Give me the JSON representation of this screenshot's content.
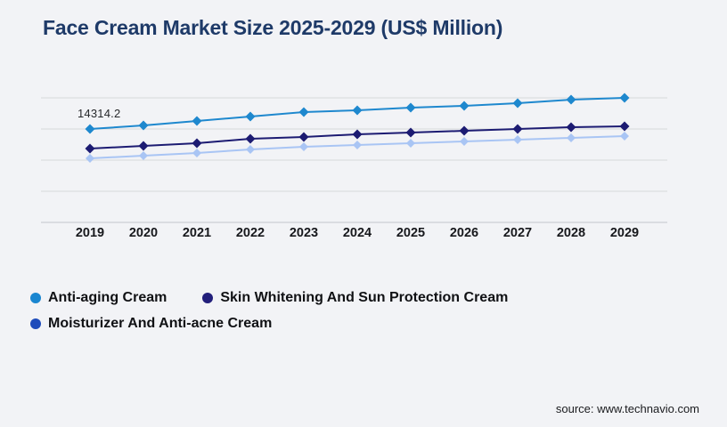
{
  "title": "Face Cream Market Size 2025-2029 (US$ Million)",
  "annotation": {
    "first_point_label": "14314.2"
  },
  "legend": {
    "items": [
      {
        "label": "Anti-aging Cream",
        "color": "#1a86d0"
      },
      {
        "label": "Skin Whitening And Sun Protection Cream",
        "color": "#221f7b"
      },
      {
        "label": "Moisturizer And Anti-acne Cream",
        "color": "#1e4cbb"
      }
    ]
  },
  "source": {
    "text": "source: www.technavio.com"
  },
  "chart_data": {
    "type": "line",
    "title": "Face Cream Market Size 2025-2029 (US$ Million)",
    "x": [
      2019,
      2020,
      2021,
      2022,
      2023,
      2024,
      2025,
      2026,
      2027,
      2028,
      2029
    ],
    "series": [
      {
        "name": "Anti-aging Cream",
        "color": "#1e88ce",
        "marker": "diamond",
        "values": [
          14314.2,
          14860,
          15540,
          16220,
          16910,
          17180,
          17590,
          17860,
          18270,
          18810,
          19090
        ]
      },
      {
        "name": "Skin Whitening And Sun Protection Cream",
        "color": "#1c1b72",
        "marker": "diamond",
        "values": [
          11320,
          11720,
          12130,
          12820,
          13090,
          13500,
          13770,
          14040,
          14310,
          14590,
          14720
        ]
      },
      {
        "name": "Moisturizer And Anti-acne Cream",
        "color": "#a9c5f4",
        "marker": "diamond",
        "values": [
          9820,
          10220,
          10630,
          11180,
          11590,
          11860,
          12130,
          12410,
          12680,
          12950,
          13220
        ]
      }
    ],
    "xlabel": "",
    "ylabel": "",
    "ylim": [
      0,
      20000
    ],
    "y_axis_labels_visible": false,
    "grid": "horizontal",
    "legend_position": "bottom-left",
    "data_labels": [
      "14314.2 shown at first point of Anti-aging Cream (2019)"
    ]
  }
}
